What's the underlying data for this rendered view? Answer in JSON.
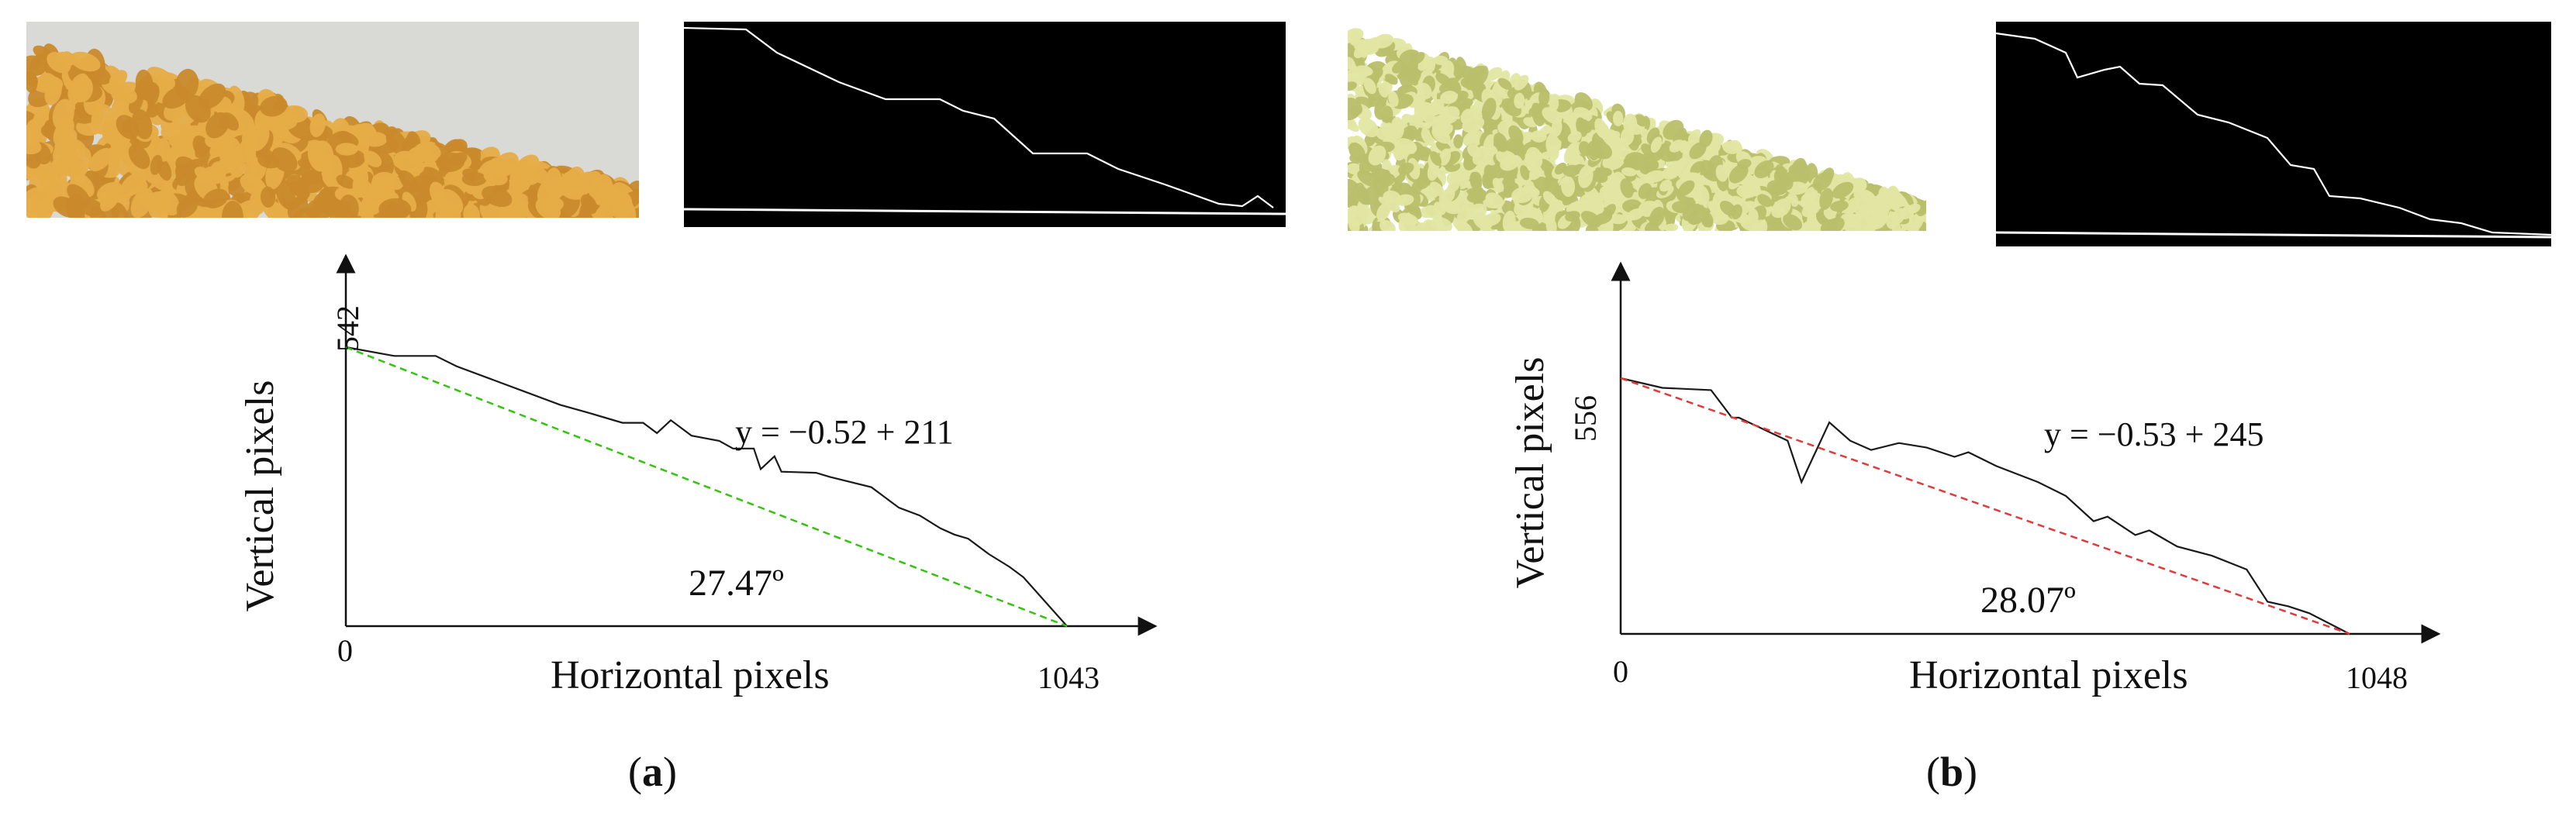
{
  "panels": [
    {
      "label": "a",
      "label_open": "(",
      "label_close": ")",
      "photo_colors": {
        "background": "#d9d9d6",
        "grain": "#e6ad48",
        "grain_dark": "#c98a2c"
      },
      "edge_colors": {
        "background": "#000000",
        "line": "#ffffff"
      },
      "chart_data": {
        "type": "line",
        "xlabel": "Horizontal pixels",
        "ylabel": "Vertical pixels",
        "x_tick_labels": [
          "0",
          "1043"
        ],
        "y_tick_labels": [
          "542"
        ],
        "xlim": [
          0,
          1043
        ],
        "ylim": [
          0,
          542
        ],
        "equation": "y = −0.52 + 211",
        "angle": "27.47º",
        "series": [
          {
            "style": "solid",
            "color": "#1a1a1a",
            "x": [
              0,
              70,
              130,
              160,
              210,
              260,
              310,
              350,
              400,
              430,
              450,
              470,
              500,
              540,
              560,
              590,
              600,
              620,
              630,
              680,
              700,
              760,
              800,
              830,
              860,
              880,
              900,
              930,
              960,
              980,
              1043
            ],
            "y": [
              542,
              525,
              525,
              505,
              480,
              455,
              430,
              415,
              395,
              395,
              375,
              400,
              370,
              360,
              345,
              345,
              305,
              330,
              300,
              298,
              290,
              270,
              230,
              215,
              190,
              178,
              170,
              140,
              115,
              95,
              0
            ]
          },
          {
            "style": "dashed",
            "color": "#34c40f",
            "x": [
              0,
              1043
            ],
            "y": [
              542,
              0
            ]
          }
        ]
      }
    },
    {
      "label": "b",
      "label_open": "(",
      "label_close": ")",
      "photo_colors": {
        "background": "#ffffff",
        "grain": "#e2e6a2",
        "grain_dark": "#b9bf6c"
      },
      "edge_colors": {
        "background": "#000000",
        "line": "#ffffff"
      },
      "chart_data": {
        "type": "line",
        "xlabel": "Horizontal pixels",
        "ylabel": "Vertical pixels",
        "x_tick_labels": [
          "0",
          "1048"
        ],
        "y_tick_labels": [
          "556"
        ],
        "xlim": [
          0,
          1048
        ],
        "ylim": [
          0,
          556
        ],
        "equation": "y = −0.53 + 245",
        "angle": "28.07º",
        "series": [
          {
            "style": "solid",
            "color": "#1a1a1a",
            "x": [
              0,
              60,
              130,
              160,
              170,
              240,
              260,
              300,
              330,
              360,
              400,
              440,
              480,
              500,
              540,
              600,
              640,
              680,
              700,
              740,
              760,
              800,
              850,
              900,
              930,
              960,
              990,
              1048
            ],
            "y": [
              556,
              535,
              530,
              470,
              470,
              420,
              330,
              460,
              420,
              400,
              415,
              405,
              385,
              395,
              365,
              330,
              300,
              245,
              255,
              215,
              225,
              190,
              170,
              140,
              70,
              60,
              45,
              0
            ]
          },
          {
            "style": "dashed",
            "color": "#e23a3a",
            "x": [
              0,
              1048
            ],
            "y": [
              556,
              0
            ]
          }
        ]
      }
    }
  ]
}
